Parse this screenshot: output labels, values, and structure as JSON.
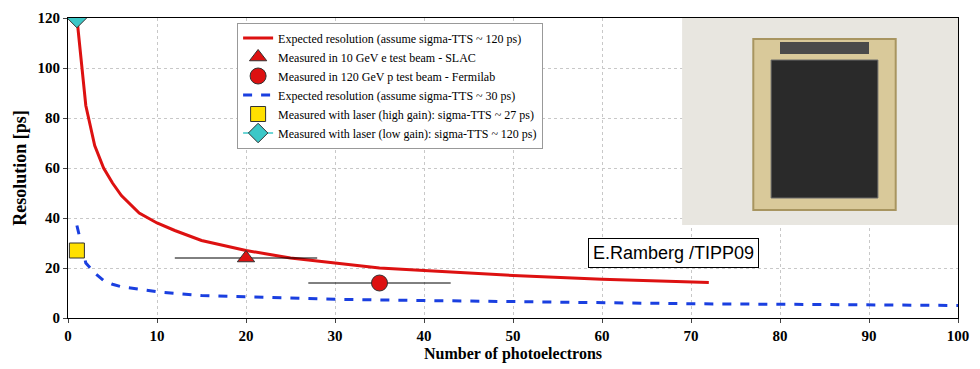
{
  "chart_data": {
    "type": "line",
    "xlabel": "Number of photoelectrons",
    "ylabel": "Resolution [ps]",
    "xlim": [
      0,
      100
    ],
    "ylim": [
      0,
      120
    ],
    "xticks": [
      0,
      10,
      20,
      30,
      40,
      50,
      60,
      70,
      80,
      90,
      100
    ],
    "yticks": [
      0,
      20,
      40,
      60,
      80,
      100,
      120
    ],
    "grid": true,
    "legend": "top",
    "annotations": [
      "E.Ramberg /TIPP09"
    ],
    "series": [
      {
        "name": "Expected resolution (assume sigma-TTS ~ 120 ps)",
        "type": "line",
        "color": "#dd1111",
        "line_style": "solid",
        "x": [
          1,
          2,
          3,
          4,
          5,
          6,
          8,
          10,
          12,
          15,
          20,
          25,
          30,
          35,
          40,
          50,
          60,
          72
        ],
        "values": [
          120,
          85,
          69,
          60,
          54,
          49,
          42,
          38,
          35,
          31,
          27,
          24,
          22,
          20,
          19,
          17,
          15.5,
          14.2
        ]
      },
      {
        "name": "Measured in 10 GeV e test beam - SLAC",
        "type": "scatter",
        "color": "#dd1111",
        "marker": "triangle",
        "x": [
          20
        ],
        "values": [
          24
        ],
        "x_error": [
          8
        ]
      },
      {
        "name": "Measured in 120 GeV p test beam - Fermilab",
        "type": "scatter",
        "color": "#dd1111",
        "marker": "circle",
        "x": [
          35
        ],
        "values": [
          14
        ],
        "x_error": [
          8
        ]
      },
      {
        "name": "Expected resolution (assume sigma-TTS ~ 30 ps)",
        "type": "line",
        "color": "#1a3fe0",
        "line_style": "dash",
        "x": [
          1,
          2,
          3,
          4,
          5,
          6,
          8,
          10,
          15,
          20,
          30,
          40,
          50,
          60,
          70,
          80,
          90,
          100
        ],
        "values": [
          37,
          22,
          18,
          15,
          13.5,
          12.5,
          11.5,
          10.5,
          9,
          8.5,
          7.5,
          7,
          6.5,
          6,
          5.7,
          5.5,
          5.2,
          5
        ]
      },
      {
        "name": "Measured with laser (high gain): sigma-TTS ~ 27 ps)",
        "type": "scatter",
        "color": "#ffe000",
        "marker": "square",
        "x": [
          1
        ],
        "values": [
          27
        ]
      },
      {
        "name": "Measured with laser (low gain): sigma-TTS ~ 120 ps)",
        "type": "line",
        "color": "#3cc8c8",
        "marker": "diamond",
        "x": [
          1
        ],
        "values": [
          120
        ]
      }
    ]
  }
}
